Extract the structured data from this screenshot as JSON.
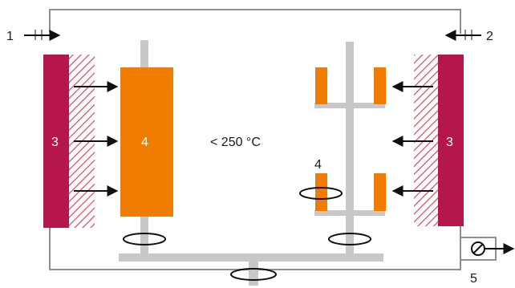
{
  "diagram": {
    "temperature": "< 250 °C",
    "labels": {
      "inlet_left": "1",
      "inlet_right": "2",
      "heater_left": "3",
      "heater_right": "3",
      "substrate_left": "4",
      "substrate_right": "4",
      "pump": "5"
    },
    "colors": {
      "heater": "#b5164b",
      "hatch": "#d9475f",
      "substrate": "#f07d00",
      "shaft": "#c8c8c8",
      "chamber": "#8f8f8f",
      "arrow": "#111111"
    }
  }
}
